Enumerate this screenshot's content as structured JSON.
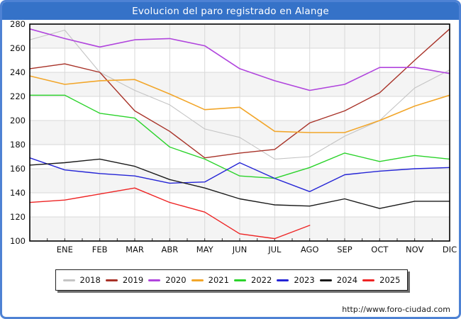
{
  "window": {
    "title": "Evolucion del paro registrado en Alange",
    "footer_url": "http://www.foro-ciudad.com"
  },
  "colors": {
    "frame_border": "#4e82d4",
    "title_bar": "#3572c8",
    "title_text": "#ffffff",
    "plot_border": "#000000",
    "grid_line": "#d9d9d9",
    "band_fill": "#f4f4f4",
    "tick_color": "#444444",
    "axis_label": "#111111"
  },
  "chart_data": {
    "type": "line",
    "title": "Evolucion del paro registrado en Alange",
    "xlabel": "",
    "ylabel": "",
    "x_categories": [
      "ENE",
      "FEB",
      "MAR",
      "ABR",
      "MAY",
      "JUN",
      "JUL",
      "AGO",
      "SEP",
      "OCT",
      "NOV",
      "DIC"
    ],
    "leading_point_note": "each full series has one extra unlabeled point at the left axis edge (December of the previous year) before ENE",
    "y_axis": {
      "min": 100,
      "max": 280,
      "step": 20
    },
    "grid": true,
    "legend_position": "bottom",
    "series": [
      {
        "name": "2018",
        "color": "#c4c4c4",
        "width": 1.1,
        "values": [
          267,
          275,
          240,
          225,
          213,
          193,
          186,
          168,
          170,
          187,
          200,
          227,
          242
        ]
      },
      {
        "name": "2019",
        "color": "#a83228",
        "width": 1.4,
        "values": [
          243,
          247,
          240,
          208,
          191,
          169,
          173,
          176,
          198,
          208,
          223,
          250,
          276
        ]
      },
      {
        "name": "2020",
        "color": "#b044dd",
        "width": 1.6,
        "values": [
          276,
          268,
          261,
          267,
          268,
          262,
          243,
          233,
          225,
          230,
          244,
          244,
          239
        ]
      },
      {
        "name": "2021",
        "color": "#f2a62a",
        "width": 1.6,
        "values": [
          237,
          230,
          233,
          234,
          222,
          209,
          211,
          191,
          190,
          190,
          200,
          212,
          221
        ]
      },
      {
        "name": "2022",
        "color": "#2bd32b",
        "width": 1.4,
        "values": [
          221,
          221,
          206,
          202,
          178,
          168,
          154,
          152,
          161,
          173,
          166,
          171,
          168
        ]
      },
      {
        "name": "2023",
        "color": "#2424d6",
        "width": 1.4,
        "values": [
          169,
          159,
          156,
          154,
          148,
          149,
          165,
          152,
          141,
          155,
          158,
          160,
          161
        ]
      },
      {
        "name": "2024",
        "color": "#1a1a1a",
        "width": 1.4,
        "values": [
          163,
          165,
          168,
          162,
          151,
          144,
          135,
          130,
          129,
          135,
          127,
          133,
          133
        ]
      },
      {
        "name": "2025",
        "color": "#ee2424",
        "width": 1.4,
        "values": [
          132,
          134,
          139,
          144,
          132,
          124,
          106,
          102,
          113
        ]
      }
    ]
  }
}
